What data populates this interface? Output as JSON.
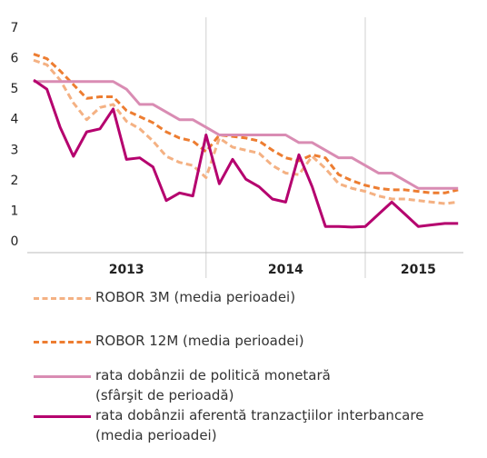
{
  "chart_data": {
    "type": "line",
    "categories": [
      null,
      null,
      null,
      null,
      null,
      null,
      null,
      "2013",
      null,
      null,
      null,
      null,
      null,
      null,
      null,
      null,
      null,
      null,
      null,
      "2014",
      null,
      null,
      null,
      null,
      null,
      null,
      null,
      null,
      null,
      "2015",
      null,
      null,
      null
    ],
    "series": [
      {
        "name": "ROBOR 3M (media perioadei)",
        "color": "#f4b183",
        "dash": true,
        "values": [
          5.95,
          5.8,
          5.3,
          4.55,
          4.0,
          4.4,
          4.5,
          3.95,
          3.7,
          3.3,
          2.8,
          2.6,
          2.5,
          2.1,
          3.4,
          3.1,
          3.0,
          2.9,
          2.5,
          2.25,
          2.2,
          2.8,
          2.4,
          1.9,
          1.75,
          1.65,
          1.5,
          1.4,
          1.4,
          1.35,
          1.3,
          1.25,
          1.3
        ]
      },
      {
        "name": "ROBOR 12M (media perioadei)",
        "color": "#ed7d31",
        "dash": true,
        "values": [
          6.15,
          6.0,
          5.6,
          5.15,
          4.7,
          4.75,
          4.75,
          4.3,
          4.1,
          3.9,
          3.6,
          3.4,
          3.3,
          2.95,
          3.5,
          3.45,
          3.4,
          3.3,
          3.0,
          2.75,
          2.65,
          2.85,
          2.75,
          2.2,
          2.0,
          1.85,
          1.75,
          1.7,
          1.7,
          1.65,
          1.6,
          1.6,
          1.7
        ]
      },
      {
        "name": "rata dobânzii de politică monetară\n(sfârşit de perioadă)",
        "color": "#d98cb3",
        "dash": false,
        "values": [
          5.25,
          5.25,
          5.25,
          5.25,
          5.25,
          5.25,
          5.25,
          5.0,
          4.5,
          4.5,
          4.25,
          4.0,
          4.0,
          3.75,
          3.5,
          3.5,
          3.5,
          3.5,
          3.5,
          3.5,
          3.25,
          3.25,
          3.0,
          2.75,
          2.75,
          2.5,
          2.25,
          2.25,
          2.0,
          1.75,
          1.75,
          1.75,
          1.75
        ]
      },
      {
        "name": "rata dobânzii aferentă tranzacţiilor interbancare\n(media perioadei)",
        "color": "#b5006e",
        "dash": false,
        "values": [
          5.3,
          5.0,
          3.75,
          2.8,
          3.6,
          3.7,
          4.35,
          2.7,
          2.75,
          2.45,
          1.35,
          1.6,
          1.5,
          3.5,
          1.9,
          2.7,
          2.05,
          1.8,
          1.4,
          1.3,
          2.85,
          1.8,
          0.5,
          0.5,
          0.48,
          0.5,
          0.9,
          1.3,
          0.9,
          0.5,
          0.55,
          0.6,
          0.6
        ]
      }
    ],
    "ylim": [
      0,
      7
    ],
    "yticks": [
      0,
      1,
      2,
      3,
      4,
      5,
      6,
      7
    ],
    "year_separators": [
      13,
      25
    ]
  }
}
